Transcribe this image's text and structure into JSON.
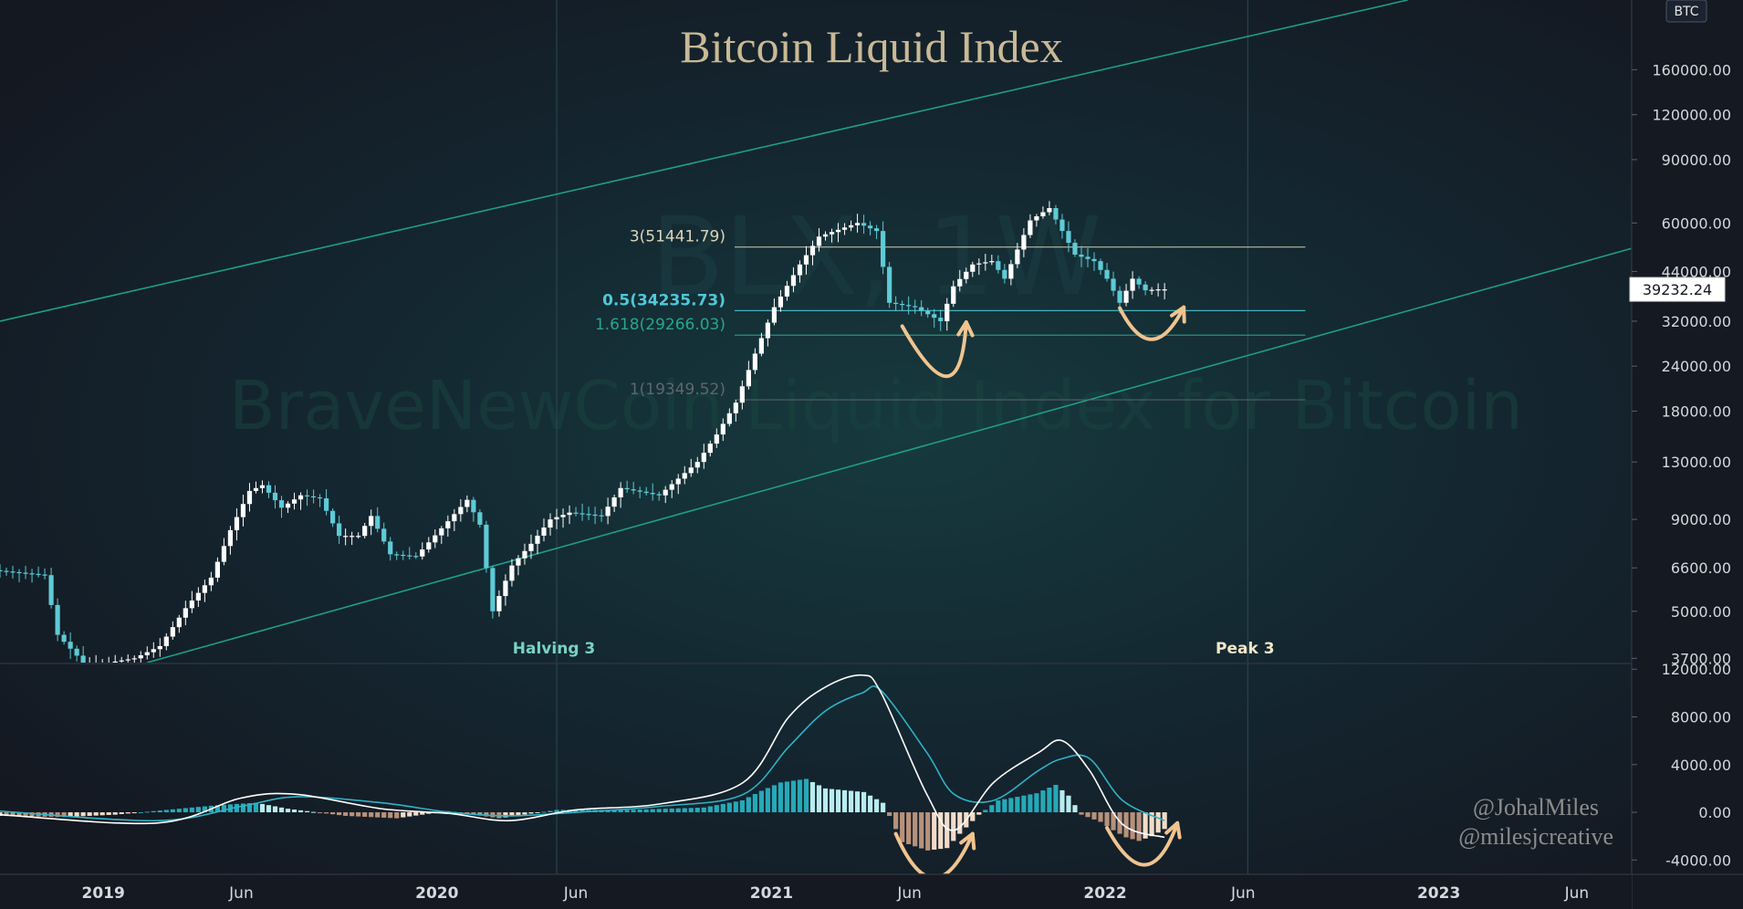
{
  "chart_data": {
    "type": "candlestick",
    "title": "Bitcoin Liquid Index",
    "watermark": {
      "symbol": "BLX, 1W",
      "name": "BraveNewCoin Liquid Index for Bitcoin"
    },
    "currency_badge": "BTC",
    "scale": "log",
    "y_range": [
      3600,
      250000
    ],
    "y_ticks": [
      {
        "value": 160000,
        "label": "160000.00"
      },
      {
        "value": 120000,
        "label": "120000.00"
      },
      {
        "value": 90000,
        "label": "90000.00"
      },
      {
        "value": 60000,
        "label": "60000.00"
      },
      {
        "value": 44000,
        "label": "44000.00"
      },
      {
        "value": 32000,
        "label": "32000.00"
      },
      {
        "value": 24000,
        "label": "24000.00"
      },
      {
        "value": 18000,
        "label": "18000.00"
      },
      {
        "value": 13000,
        "label": "13000.00"
      },
      {
        "value": 9000,
        "label": "9000.00"
      },
      {
        "value": 6600,
        "label": "6600.00"
      },
      {
        "value": 5000,
        "label": "5000.00"
      },
      {
        "value": 3700,
        "label": "3700.00"
      }
    ],
    "x_range": [
      "2018-09-10",
      "2023-07-31"
    ],
    "x_ticks": [
      {
        "date": "2019-01-01",
        "label": "2019"
      },
      {
        "date": "2019-06-01",
        "label": "Jun"
      },
      {
        "date": "2020-01-01",
        "label": "2020"
      },
      {
        "date": "2020-06-01",
        "label": "Jun"
      },
      {
        "date": "2021-01-01",
        "label": "2021"
      },
      {
        "date": "2021-06-01",
        "label": "Jun"
      },
      {
        "date": "2022-01-01",
        "label": "2022"
      },
      {
        "date": "2022-06-01",
        "label": "Jun"
      },
      {
        "date": "2023-01-01",
        "label": "2023"
      },
      {
        "date": "2023-06-01",
        "label": "Jun"
      }
    ],
    "last_price": {
      "value": 39232.24,
      "label": "39232.24"
    },
    "fib_levels": [
      {
        "value": 51441.79,
        "label": "3(51441.79)",
        "color": "#dcd6b8",
        "end": "2022-08-08"
      },
      {
        "value": 34235.73,
        "label": "0.5(34235.73)",
        "color": "#4ec9d8",
        "end": "2022-08-08"
      },
      {
        "value": 29266.03,
        "label": "1.618(29266.03)",
        "color": "#2aa58a",
        "end": "2022-08-08"
      },
      {
        "value": 19349.52,
        "label": "1(19349.52)",
        "color": "#5f6670",
        "end": "2022-08-08"
      }
    ],
    "trendlines": [
      {
        "from": {
          "date": "2018-09-10",
          "value": 32000
        },
        "to": {
          "date": "2022-11-28",
          "value": 250000
        },
        "color": "#1f9e87"
      },
      {
        "from": {
          "date": "2019-02-18",
          "value": 3600
        },
        "to": {
          "date": "2023-07-31",
          "value": 51000
        },
        "color": "#1f9e87"
      }
    ],
    "vertical_markers": [
      {
        "date": "2020-05-11",
        "label": "Halving 3",
        "color": "#79d3c2"
      },
      {
        "date": "2022-06-06",
        "label": "Peak 3",
        "color": "#f2e7c8"
      }
    ],
    "price_points": [
      [
        "2018-09-10",
        6500
      ],
      [
        "2018-10-08",
        6400
      ],
      [
        "2018-11-05",
        6300
      ],
      [
        "2018-11-19",
        4300
      ],
      [
        "2018-12-17",
        3600
      ],
      [
        "2019-01-14",
        3600
      ],
      [
        "2019-02-11",
        3700
      ],
      [
        "2019-03-11",
        4000
      ],
      [
        "2019-04-08",
        5100
      ],
      [
        "2019-05-06",
        6200
      ],
      [
        "2019-05-27",
        8400
      ],
      [
        "2019-06-17",
        10800
      ],
      [
        "2019-07-01",
        11200
      ],
      [
        "2019-07-22",
        9700
      ],
      [
        "2019-08-12",
        10500
      ],
      [
        "2019-09-02",
        10300
      ],
      [
        "2019-09-23",
        8100
      ],
      [
        "2019-10-14",
        8100
      ],
      [
        "2019-10-28",
        9200
      ],
      [
        "2019-11-18",
        7200
      ],
      [
        "2019-12-16",
        7100
      ],
      [
        "2020-01-13",
        8500
      ],
      [
        "2020-02-10",
        10200
      ],
      [
        "2020-02-24",
        8700
      ],
      [
        "2020-03-09",
        5000
      ],
      [
        "2020-03-30",
        6700
      ],
      [
        "2020-04-20",
        7700
      ],
      [
        "2020-05-11",
        9000
      ],
      [
        "2020-06-01",
        9400
      ],
      [
        "2020-07-06",
        9200
      ],
      [
        "2020-07-27",
        11000
      ],
      [
        "2020-09-07",
        10500
      ],
      [
        "2020-10-19",
        13000
      ],
      [
        "2020-11-09",
        15500
      ],
      [
        "2020-11-30",
        19000
      ],
      [
        "2020-12-21",
        26000
      ],
      [
        "2021-01-11",
        35000
      ],
      [
        "2021-02-08",
        46000
      ],
      [
        "2021-03-01",
        55000
      ],
      [
        "2021-04-12",
        60000
      ],
      [
        "2021-05-03",
        57000
      ],
      [
        "2021-05-17",
        36000
      ],
      [
        "2021-06-14",
        35000
      ],
      [
        "2021-07-12",
        32000
      ],
      [
        "2021-07-26",
        40000
      ],
      [
        "2021-08-16",
        46000
      ],
      [
        "2021-09-06",
        47000
      ],
      [
        "2021-09-20",
        42000
      ],
      [
        "2021-10-18",
        61000
      ],
      [
        "2021-11-08",
        66000
      ],
      [
        "2021-11-22",
        57000
      ],
      [
        "2021-12-06",
        49000
      ],
      [
        "2021-12-27",
        47000
      ],
      [
        "2022-01-10",
        42000
      ],
      [
        "2022-01-24",
        36000
      ],
      [
        "2022-02-07",
        42000
      ],
      [
        "2022-02-21",
        39000
      ],
      [
        "2022-03-07",
        39232
      ]
    ],
    "arrows": [
      {
        "panel": "price",
        "from": {
          "date": "2021-05-24",
          "value": 31000
        },
        "via": {
          "date": "2021-07-12",
          "value": 22500
        },
        "to": {
          "date": "2021-08-02",
          "value": 31800
        }
      },
      {
        "panel": "price",
        "from": {
          "date": "2022-01-17",
          "value": 34800
        },
        "via": {
          "date": "2022-02-21",
          "value": 28500
        },
        "to": {
          "date": "2022-03-28",
          "value": 35000
        }
      },
      {
        "panel": "macd",
        "from": {
          "date": "2021-05-17",
          "value": -1800
        },
        "via": {
          "date": "2021-06-28",
          "value": -5500
        },
        "to": {
          "date": "2021-08-09",
          "value": -1800
        }
      },
      {
        "panel": "macd",
        "from": {
          "date": "2022-01-03",
          "value": -1300
        },
        "via": {
          "date": "2022-02-14",
          "value": -4400
        },
        "to": {
          "date": "2022-03-21",
          "value": -900
        }
      }
    ],
    "macd": {
      "y_range": [
        -5200,
        12400
      ],
      "y_ticks": [
        {
          "value": 12000,
          "label": "12000.00"
        },
        {
          "value": 8000,
          "label": "8000.00"
        },
        {
          "value": 4000,
          "label": "4000.00"
        },
        {
          "value": 0,
          "label": "0.00"
        },
        {
          "value": -4000,
          "label": "-4000.00"
        }
      ],
      "macd_line": [
        [
          "2018-09-10",
          -200
        ],
        [
          "2019-03-01",
          -900
        ],
        [
          "2019-06-01",
          1200
        ],
        [
          "2019-08-01",
          1500
        ],
        [
          "2019-11-01",
          300
        ],
        [
          "2020-01-15",
          -100
        ],
        [
          "2020-03-20",
          -700
        ],
        [
          "2020-06-01",
          200
        ],
        [
          "2020-09-01",
          700
        ],
        [
          "2020-12-01",
          2500
        ],
        [
          "2021-01-20",
          8000
        ],
        [
          "2021-03-01",
          10500
        ],
        [
          "2021-04-10",
          11500
        ],
        [
          "2021-05-01",
          10000
        ],
        [
          "2021-06-20",
          1500
        ],
        [
          "2021-07-20",
          -1500
        ],
        [
          "2021-09-01",
          2500
        ],
        [
          "2021-10-20",
          5000
        ],
        [
          "2021-11-15",
          6000
        ],
        [
          "2021-12-15",
          3500
        ],
        [
          "2022-01-20",
          -1000
        ],
        [
          "2022-03-07",
          -2100
        ]
      ],
      "signal_line": [
        [
          "2018-09-10",
          100
        ],
        [
          "2019-03-01",
          -700
        ],
        [
          "2019-06-01",
          500
        ],
        [
          "2019-08-01",
          1300
        ],
        [
          "2019-11-01",
          800
        ],
        [
          "2020-01-15",
          0
        ],
        [
          "2020-03-20",
          -300
        ],
        [
          "2020-06-01",
          0
        ],
        [
          "2020-09-01",
          500
        ],
        [
          "2020-12-01",
          1500
        ],
        [
          "2021-01-20",
          5500
        ],
        [
          "2021-03-01",
          8500
        ],
        [
          "2021-04-10",
          10000
        ],
        [
          "2021-05-01",
          10200
        ],
        [
          "2021-06-20",
          5000
        ],
        [
          "2021-07-20",
          1500
        ],
        [
          "2021-09-01",
          1000
        ],
        [
          "2021-10-20",
          3500
        ],
        [
          "2021-11-15",
          4500
        ],
        [
          "2021-12-15",
          4500
        ],
        [
          "2022-01-20",
          1000
        ],
        [
          "2022-03-07",
          -700
        ]
      ],
      "histogram": [
        [
          "2018-09-10",
          -300
        ],
        [
          "2018-11-19",
          -400
        ],
        [
          "2019-01-14",
          -200
        ],
        [
          "2019-03-11",
          200
        ],
        [
          "2019-05-06",
          600
        ],
        [
          "2019-06-17",
          800
        ],
        [
          "2019-07-22",
          300
        ],
        [
          "2019-09-23",
          -300
        ],
        [
          "2019-11-18",
          -500
        ],
        [
          "2020-01-13",
          100
        ],
        [
          "2020-03-09",
          -500
        ],
        [
          "2020-05-11",
          200
        ],
        [
          "2020-07-27",
          200
        ],
        [
          "2020-10-19",
          400
        ],
        [
          "2020-11-30",
          1000
        ],
        [
          "2020-12-21",
          1800
        ],
        [
          "2021-01-11",
          2500
        ],
        [
          "2021-02-08",
          2800
        ],
        [
          "2021-03-01",
          2000
        ],
        [
          "2021-04-12",
          1700
        ],
        [
          "2021-05-03",
          800
        ],
        [
          "2021-05-24",
          -2500
        ],
        [
          "2021-06-21",
          -3200
        ],
        [
          "2021-07-12",
          -3000
        ],
        [
          "2021-07-26",
          -1800
        ],
        [
          "2021-08-16",
          -200
        ],
        [
          "2021-09-06",
          1000
        ],
        [
          "2021-10-18",
          1600
        ],
        [
          "2021-11-08",
          2300
        ],
        [
          "2021-11-22",
          1400
        ],
        [
          "2021-12-06",
          -200
        ],
        [
          "2021-12-27",
          -800
        ],
        [
          "2022-01-10",
          -1500
        ],
        [
          "2022-01-24",
          -2100
        ],
        [
          "2022-02-07",
          -2400
        ],
        [
          "2022-02-21",
          -2000
        ],
        [
          "2022-03-07",
          -1400
        ]
      ]
    },
    "credits": [
      "@JohalMiles",
      "@milesjcreative"
    ]
  }
}
